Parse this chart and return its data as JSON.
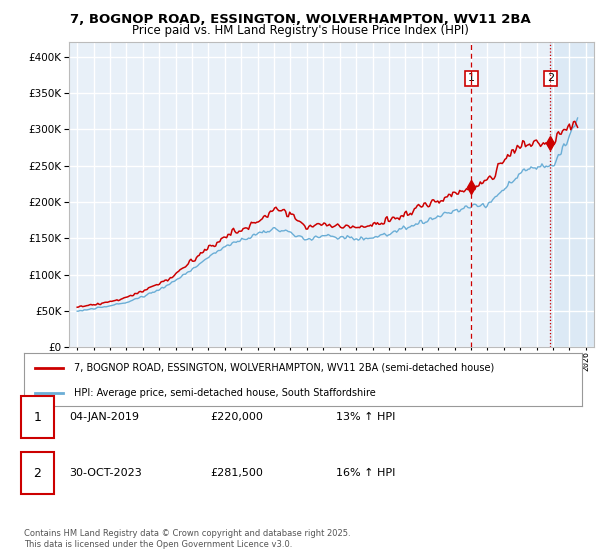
{
  "title1": "7, BOGNOP ROAD, ESSINGTON, WOLVERHAMPTON, WV11 2BA",
  "title2": "Price paid vs. HM Land Registry's House Price Index (HPI)",
  "legend_line1": "7, BOGNOP ROAD, ESSINGTON, WOLVERHAMPTON, WV11 2BA (semi-detached house)",
  "legend_line2": "HPI: Average price, semi-detached house, South Staffordshire",
  "footer": "Contains HM Land Registry data © Crown copyright and database right 2025.\nThis data is licensed under the Open Government Licence v3.0.",
  "table": [
    {
      "num": "1",
      "date": "04-JAN-2019",
      "price": "£220,000",
      "change": "13% ↑ HPI"
    },
    {
      "num": "2",
      "date": "30-OCT-2023",
      "price": "£281,500",
      "change": "16% ↑ HPI"
    }
  ],
  "sale1_year": 2019.03,
  "sale1_value": 220000,
  "sale2_year": 2023.83,
  "sale2_value": 281500,
  "hpi_color": "#6baed6",
  "price_color": "#cc0000",
  "vline_color": "#cc0000",
  "shade_color": "#dce9f5",
  "plot_bg": "#e8f0f8",
  "grid_color": "#ffffff",
  "ylim": [
    0,
    420000
  ],
  "xlim_start": 1994.5,
  "xlim_end": 2026.5,
  "title_fontsize": 9,
  "subtitle_fontsize": 8.5
}
